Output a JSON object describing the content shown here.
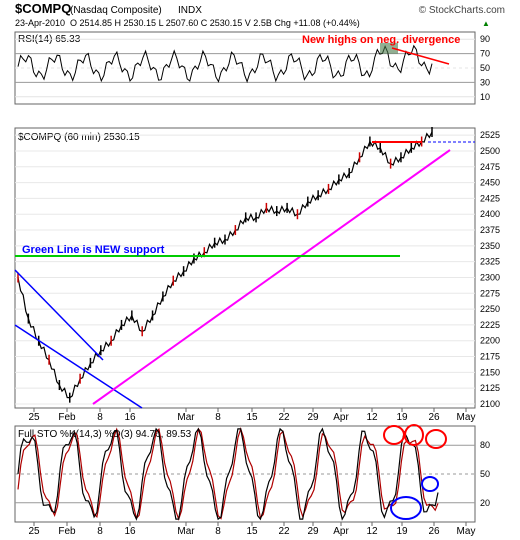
{
  "header": {
    "symbol": "$COMPQ",
    "name": "(Nasdaq Composite)",
    "exchange": "INDX",
    "source": "© StockCharts.com",
    "date": "23-Apr-2010",
    "quote": "O 2514.85 H 2530.15 L 2507.60 C 2530.15 V 2.5B Chg +11.08 (+0.44%)",
    "quote_arrow": "▲"
  },
  "panels": {
    "rsi": {
      "label": "RSI(14) 65.33",
      "annotation": "New highs on neg. divergence",
      "ticks": [
        90,
        70,
        50,
        30,
        10
      ]
    },
    "price": {
      "label": "$COMPQ (60 min) 2530.15",
      "annotation": "Green Line is NEW support",
      "support_level": 2330,
      "ylim": [
        2100,
        2530
      ],
      "ticks": [
        2525,
        2500,
        2475,
        2450,
        2425,
        2400,
        2375,
        2350,
        2325,
        2300,
        2275,
        2250,
        2225,
        2200,
        2175,
        2150,
        2125,
        2100
      ]
    },
    "sto": {
      "label": "Full STO %K(14,3) %D(3) 94.76, 89.53",
      "ticks": [
        80,
        50,
        20
      ]
    }
  },
  "x_axis": {
    "labels": [
      "25",
      "Feb",
      "8",
      "16",
      "Mar",
      "8",
      "15",
      "22",
      "29",
      "Apr",
      "12",
      "19",
      "26",
      "May"
    ]
  },
  "colors": {
    "trend": "#ff00ff",
    "channel": "#0000ff",
    "support": "#00cc00",
    "annotation": "#ff0000",
    "circle_red": "#ff0000",
    "circle_blue": "#0000ff"
  },
  "chart_data": {
    "type": "line",
    "title": "$COMPQ (60 min)",
    "y_axis": "price",
    "ylim": [
      2100,
      2530
    ],
    "series": [
      {
        "name": "$COMPQ",
        "x": [
          "Jan 21",
          "Jan 25",
          "Jan 28",
          "Feb 1",
          "Feb 4",
          "Feb 5",
          "Feb 8",
          "Feb 10",
          "Feb 12",
          "Feb 16",
          "Feb 19",
          "Feb 22",
          "Feb 24",
          "Feb 26",
          "Mar 1",
          "Mar 3",
          "Mar 5",
          "Mar 8",
          "Mar 10",
          "Mar 12",
          "Mar 15",
          "Mar 17",
          "Mar 19",
          "Mar 22",
          "Mar 24",
          "Mar 26",
          "Mar 29",
          "Mar 31",
          "Apr 1",
          "Apr 5",
          "Apr 7",
          "Apr 9",
          "Apr 12",
          "Apr 14",
          "Apr 15",
          "Apr 16",
          "Apr 19",
          "Apr 20",
          "Apr 21",
          "Apr 22",
          "Apr 23"
        ],
        "values": [
          2300,
          2235,
          2200,
          2170,
          2130,
          2110,
          2140,
          2165,
          2185,
          2200,
          2225,
          2240,
          2215,
          2240,
          2270,
          2295,
          2310,
          2330,
          2340,
          2355,
          2360,
          2375,
          2395,
          2395,
          2410,
          2405,
          2410,
          2400,
          2420,
          2430,
          2440,
          2455,
          2465,
          2490,
          2515,
          2505,
          2480,
          2490,
          2505,
          2515,
          2530
        ]
      }
    ]
  }
}
